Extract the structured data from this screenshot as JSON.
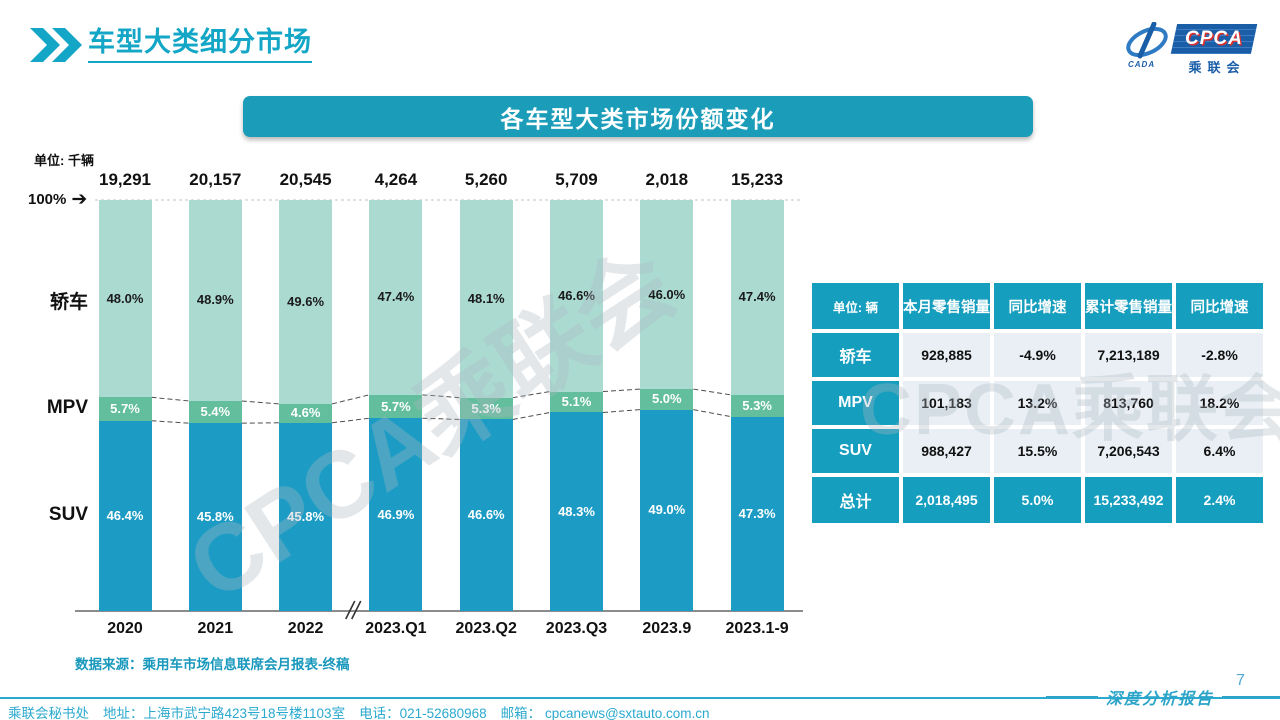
{
  "page": {
    "title": "车型大类细分市场",
    "page_number": "7",
    "report_label": "深度分析报告",
    "logo": {
      "cpca_text": "CPCA",
      "cada_text": "CADA",
      "org_cn": "乘联会"
    },
    "footer": {
      "org": "乘联会秘书处",
      "address": "地址：上海市武宁路423号18号楼1103室",
      "phone": "电话：021-52680968",
      "email_label": "邮箱：",
      "email": "cpcanews@sxtauto.com.cn"
    }
  },
  "section": {
    "banner_title": "各车型大类市场份额变化",
    "unit_label": "单位: 千辆",
    "y100_label": "100%",
    "source_note": "数据来源：乘用车市场信息联席会月报表-终稿",
    "watermark_text": "CPCA乘联会"
  },
  "chart_data": {
    "type": "bar",
    "stacked": true,
    "unit": "千辆",
    "title": "各车型大类市场份额变化",
    "categories": [
      "2020",
      "2021",
      "2022",
      "2023.Q1",
      "2023.Q2",
      "2023.Q3",
      "2023.9",
      "2023.1-9"
    ],
    "totals": [
      "19,291",
      "20,157",
      "20,545",
      "4,264",
      "5,260",
      "5,709",
      "2,018",
      "15,233"
    ],
    "series": [
      {
        "name": "轿车",
        "color": "#ABDAD1",
        "label_color": "#1a1a1a",
        "values": [
          48.0,
          48.9,
          49.6,
          47.4,
          48.1,
          46.6,
          46.0,
          47.4
        ]
      },
      {
        "name": "MPV",
        "color": "#63BE9E",
        "label_color": "#ffffff",
        "values": [
          5.7,
          5.4,
          4.6,
          5.7,
          5.3,
          5.1,
          5.0,
          5.3
        ]
      },
      {
        "name": "SUV",
        "color": "#1C9CC4",
        "label_color": "#ffffff",
        "values": [
          46.4,
          45.8,
          45.8,
          46.9,
          46.6,
          48.3,
          49.0,
          47.3
        ]
      }
    ],
    "ylim": [
      0,
      100
    ],
    "grid": false,
    "legend_position": "left",
    "axis_break_after": "2022"
  },
  "table": {
    "unit_header": "单位: 辆",
    "headers": [
      "本月零售销量",
      "同比增速",
      "累计零售销量",
      "同比增速"
    ],
    "rows": [
      {
        "label": "轿车",
        "values": [
          "928,885",
          "-4.9%",
          "7,213,189",
          "-2.8%"
        ],
        "is_total": false
      },
      {
        "label": "MPV",
        "values": [
          "101,183",
          "13.2%",
          "813,760",
          "18.2%"
        ],
        "is_total": false
      },
      {
        "label": "SUV",
        "values": [
          "988,427",
          "15.5%",
          "7,206,543",
          "6.4%"
        ],
        "is_total": false
      },
      {
        "label": "总计",
        "values": [
          "2,018,495",
          "5.0%",
          "15,233,492",
          "2.4%"
        ],
        "is_total": true
      }
    ]
  },
  "colors": {
    "accent": "#13A6C6",
    "banner_bg": "#1B9DB9",
    "table_teal": "#169EBE",
    "table_cell_bg": "#E9EFF5",
    "footer_teal": "#2BA9CE",
    "watermark": "#AEB9C2"
  }
}
